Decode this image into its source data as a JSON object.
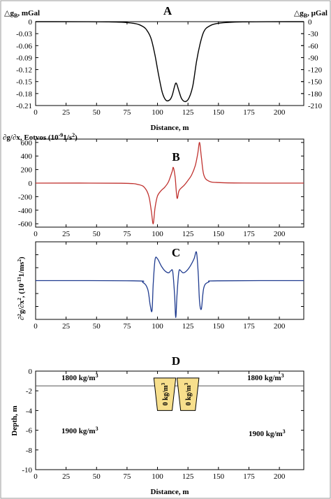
{
  "chart_data": [
    {
      "type": "line",
      "panel": "A",
      "ylabel_left_main": "△g",
      "ylabel_left_sub": "B",
      "ylabel_left_unit": ", mGal",
      "ylabel_right_main": "△g",
      "ylabel_right_sub": "B",
      "ylabel_right_unit": ", μGal",
      "xlabel": "Distance, m",
      "xlim": [
        0,
        220
      ],
      "ylim": [
        -0.21,
        0
      ],
      "xticks": [
        "0",
        "25",
        "50",
        "75",
        "100",
        "125",
        "150",
        "175",
        "200"
      ],
      "yticks_left": [
        "0",
        "-0.03",
        "-0.06",
        "-0.09",
        "-0.12",
        "-0.15",
        "-0.18",
        "-0.21"
      ],
      "yticks_right": [
        "0",
        "-30",
        "-60",
        "-90",
        "-120",
        "-150",
        "-180",
        "-210"
      ],
      "series": [
        {
          "color": "#000000",
          "x": [
            0,
            60,
            80,
            88,
            92,
            95,
            98,
            101,
            104,
            107,
            110,
            112,
            114,
            115,
            116,
            118,
            120,
            123,
            126,
            129,
            132,
            135,
            138,
            142,
            150,
            170,
            220
          ],
          "y": [
            0,
            -0.0005,
            -0.004,
            -0.012,
            -0.025,
            -0.045,
            -0.085,
            -0.135,
            -0.178,
            -0.197,
            -0.196,
            -0.185,
            -0.162,
            -0.154,
            -0.158,
            -0.178,
            -0.194,
            -0.2,
            -0.19,
            -0.16,
            -0.1,
            -0.055,
            -0.025,
            -0.012,
            -0.004,
            -0.0005,
            0
          ]
        }
      ]
    },
    {
      "type": "line",
      "panel": "B",
      "ylabel_main": "∂g/∂x, Eotvos (10",
      "ylabel_exp": "-9",
      "ylabel_unit": "1/s",
      "ylabel_exp2": "2",
      "ylabel_close": ")",
      "xlim": [
        0,
        220
      ],
      "ylim": [
        -650,
        650
      ],
      "xticks": [
        "0",
        "25",
        "50",
        "75",
        "100",
        "125",
        "150",
        "175",
        "200"
      ],
      "yticks": [
        "600",
        "400",
        "200",
        "0",
        "-200",
        "-400",
        "-600"
      ],
      "series": [
        {
          "color": "#c0322f",
          "x": [
            0,
            70,
            85,
            90,
            93,
            95,
            96.5,
            98,
            100,
            103,
            106,
            109,
            112,
            113,
            114.5,
            116,
            117.5,
            119,
            122,
            125,
            128,
            131,
            133,
            134.5,
            136,
            138,
            142,
            150,
            170,
            220
          ],
          "y": [
            0,
            -2,
            -25,
            -80,
            -200,
            -420,
            -600,
            -360,
            -190,
            -110,
            -60,
            20,
            170,
            230,
            80,
            -220,
            -120,
            -80,
            -30,
            40,
            120,
            260,
            430,
            600,
            380,
            120,
            30,
            8,
            1,
            0
          ]
        }
      ]
    },
    {
      "type": "line",
      "panel": "C",
      "ylabel_main": "∂",
      "ylabel_exp_a": "2",
      "ylabel_mid": "g/∂x",
      "ylabel_exp_b": "2",
      "ylabel_unit": ", (10",
      "ylabel_exp_c": "-13",
      "ylabel_tail": "1/ms",
      "ylabel_exp_d": "2",
      "ylabel_close": ")",
      "xlim": [
        0,
        220
      ],
      "ylim": [
        -1.1,
        1.1
      ],
      "xticks": [
        "0",
        "25",
        "50",
        "75",
        "100",
        "125",
        "150",
        "175",
        "200"
      ],
      "yticks": [],
      "series": [
        {
          "color": "#1f3b8f",
          "x": [
            0,
            80,
            88,
            92,
            94,
            95.5,
            96.5,
            98,
            100,
            103,
            106,
            109,
            111,
            112.5,
            114,
            115,
            116,
            117.5,
            119,
            121,
            124,
            127,
            130,
            132,
            133.5,
            134.5,
            136,
            138,
            142,
            150,
            220
          ],
          "y": [
            0,
            -0.005,
            -0.05,
            -0.25,
            -0.7,
            -0.85,
            -0.1,
            0.6,
            0.62,
            0.42,
            0.28,
            0.22,
            0.28,
            0.25,
            -0.4,
            -1.05,
            -0.4,
            0.25,
            0.28,
            0.22,
            0.28,
            0.42,
            0.62,
            0.8,
            0.15,
            -0.6,
            -0.8,
            -0.2,
            -0.04,
            -0.005,
            0
          ]
        }
      ]
    },
    {
      "type": "diagram",
      "panel": "D",
      "xlabel": "Distance, m",
      "ylabel": "Depth, m",
      "xlim": [
        0,
        220
      ],
      "ylim": [
        -10,
        0
      ],
      "xticks": [
        "0",
        "25",
        "50",
        "75",
        "100",
        "125",
        "150",
        "175",
        "200"
      ],
      "yticks": [
        "0",
        "-2",
        "-4",
        "-6",
        "-8",
        "-10"
      ],
      "layer_boundary_depth": -1.5,
      "densities": {
        "upper_left": "1800 kg/m",
        "upper_right": "1800 kg/m",
        "lower_left": "1900 kg/m",
        "lower_right": "1900 kg/m",
        "exp": "3"
      },
      "blocks": [
        {
          "label": "0 kg/m",
          "exp": "3",
          "top_x": [
            97,
            115
          ],
          "bottom_x": [
            100,
            112
          ],
          "top_depth": -0.7,
          "bottom_depth": -4,
          "color": "#f7df8c"
        },
        {
          "label": "0 kg/m",
          "exp": "3",
          "top_x": [
            116,
            134
          ],
          "bottom_x": [
            119,
            131
          ],
          "top_depth": -0.7,
          "bottom_depth": -4,
          "color": "#f7df8c"
        }
      ]
    }
  ]
}
